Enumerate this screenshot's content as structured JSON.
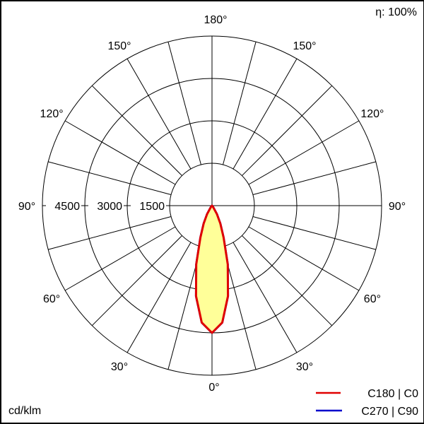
{
  "chart_data": {
    "type": "polar",
    "efficiency_label": "η: 100%",
    "unit_label": "cd/klm",
    "radial_ticks": [
      1500,
      3000,
      4500
    ],
    "radial_tick_labels": [
      "1500",
      "3000",
      "4500"
    ],
    "radial_max": 6000,
    "angle_labels": [
      {
        "angle": 180,
        "text": "180°"
      },
      {
        "angle": 150,
        "text": "150°"
      },
      {
        "angle": 120,
        "text": "120°"
      },
      {
        "angle": 90,
        "text": "90°"
      },
      {
        "angle": 60,
        "text": "60°"
      },
      {
        "angle": 30,
        "text": "30°"
      },
      {
        "angle": 0,
        "text": "0°"
      }
    ],
    "spoke_step_deg": 15,
    "gamma": [
      0,
      5,
      10,
      15,
      20,
      25,
      30,
      40,
      50,
      90
    ],
    "series": [
      {
        "name": "C270 | C90",
        "color": "#0000cc",
        "intensity": [
          4500,
          4150,
          3250,
          2150,
          1200,
          700,
          350,
          50,
          0,
          0
        ]
      },
      {
        "name": "C180 | C0",
        "color": "#e00000",
        "intensity": [
          4500,
          4150,
          3250,
          2150,
          1200,
          700,
          350,
          50,
          0,
          0
        ]
      }
    ],
    "fill_color": "#ffff99"
  }
}
